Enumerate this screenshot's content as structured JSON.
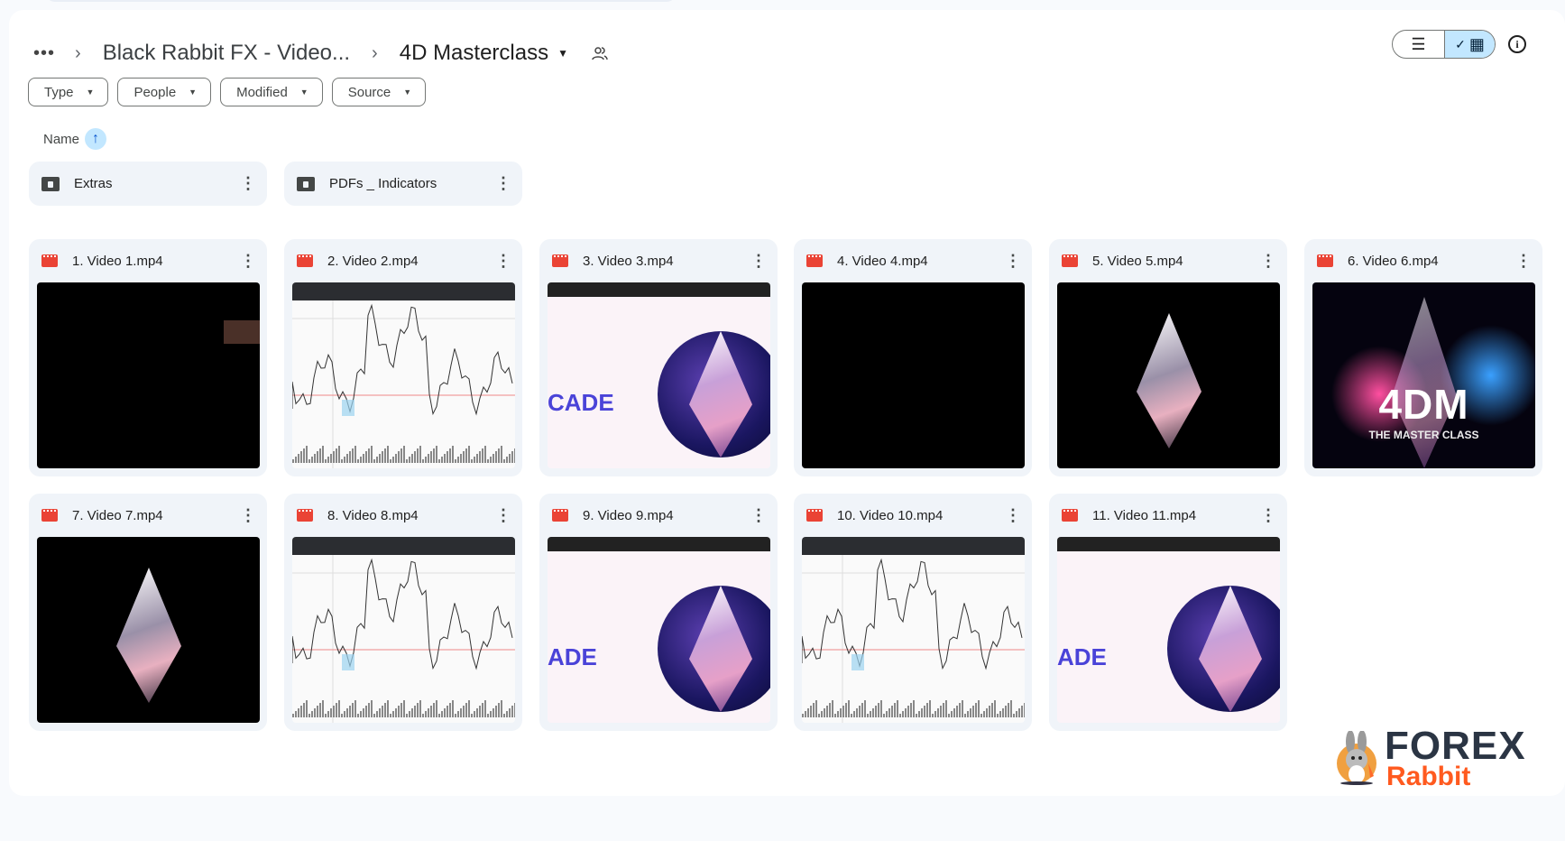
{
  "breadcrumb": {
    "more": "•••",
    "parent": "Black Rabbit FX - Video...",
    "current": "4D Masterclass"
  },
  "filters": [
    "Type",
    "People",
    "Modified",
    "Source"
  ],
  "sort": {
    "label": "Name",
    "direction": "ascending"
  },
  "view": {
    "mode": "grid",
    "list_icon": "☰",
    "grid_icon": "▦",
    "check": "✓"
  },
  "info_icon": "i",
  "folders": [
    {
      "name": "Extras"
    },
    {
      "name": "PDFs _ Indicators"
    }
  ],
  "files": [
    {
      "name": "1. Video 1.mp4",
      "thumb": "black"
    },
    {
      "name": "2. Video 2.mp4",
      "thumb": "chart"
    },
    {
      "name": "3. Video 3.mp4",
      "thumb": "eth-light",
      "text": "CADE"
    },
    {
      "name": "4. Video 4.mp4",
      "thumb": "black"
    },
    {
      "name": "5. Video 5.mp4",
      "thumb": "eth-dark"
    },
    {
      "name": "6. Video 6.mp4",
      "thumb": "4dm",
      "text": "4DM",
      "subtext": "THE MASTER CLASS"
    },
    {
      "name": "7. Video 7.mp4",
      "thumb": "eth-dark"
    },
    {
      "name": "8. Video 8.mp4",
      "thumb": "chart"
    },
    {
      "name": "9. Video 9.mp4",
      "thumb": "eth-light",
      "text": "ADE"
    },
    {
      "name": "10. Video 10.mp4",
      "thumb": "chart"
    },
    {
      "name": "11. Video 11.mp4",
      "thumb": "eth-light",
      "text": "ADE"
    }
  ],
  "watermark": {
    "line1": "FOREX",
    "line2": "Rabbit"
  },
  "colors": {
    "video_icon": "#ea4335",
    "selected": "#c2e7ff",
    "card": "#f0f4f9",
    "brand_orange": "#ff5a1f"
  }
}
